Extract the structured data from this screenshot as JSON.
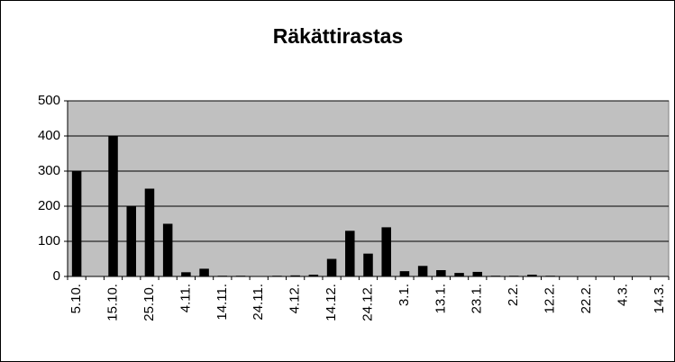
{
  "chart_data": {
    "type": "bar",
    "title": "Räkättirastas",
    "categories": [
      "5.10.",
      null,
      "15.10.",
      null,
      "25.10.",
      null,
      "4.11.",
      null,
      "14.11.",
      null,
      "24.11.",
      null,
      "4.12.",
      null,
      "14.12.",
      null,
      "24.12.",
      null,
      "3.1.",
      null,
      "13.1.",
      null,
      "23.1.",
      null,
      "2.2.",
      null,
      "12.2.",
      null,
      "22.2.",
      null,
      "4.3.",
      null,
      "14.3."
    ],
    "values": [
      300,
      0,
      400,
      200,
      250,
      150,
      12,
      22,
      2,
      2,
      0,
      2,
      3,
      5,
      50,
      130,
      65,
      140,
      15,
      30,
      18,
      10,
      13,
      2,
      2,
      5,
      2,
      1,
      1,
      1,
      1,
      1,
      0
    ],
    "color": "#000000",
    "plot_background": "#c0c0c0",
    "ylim": [
      0,
      500
    ],
    "yticks": [
      0,
      100,
      200,
      300,
      400,
      500
    ],
    "grid": true
  }
}
